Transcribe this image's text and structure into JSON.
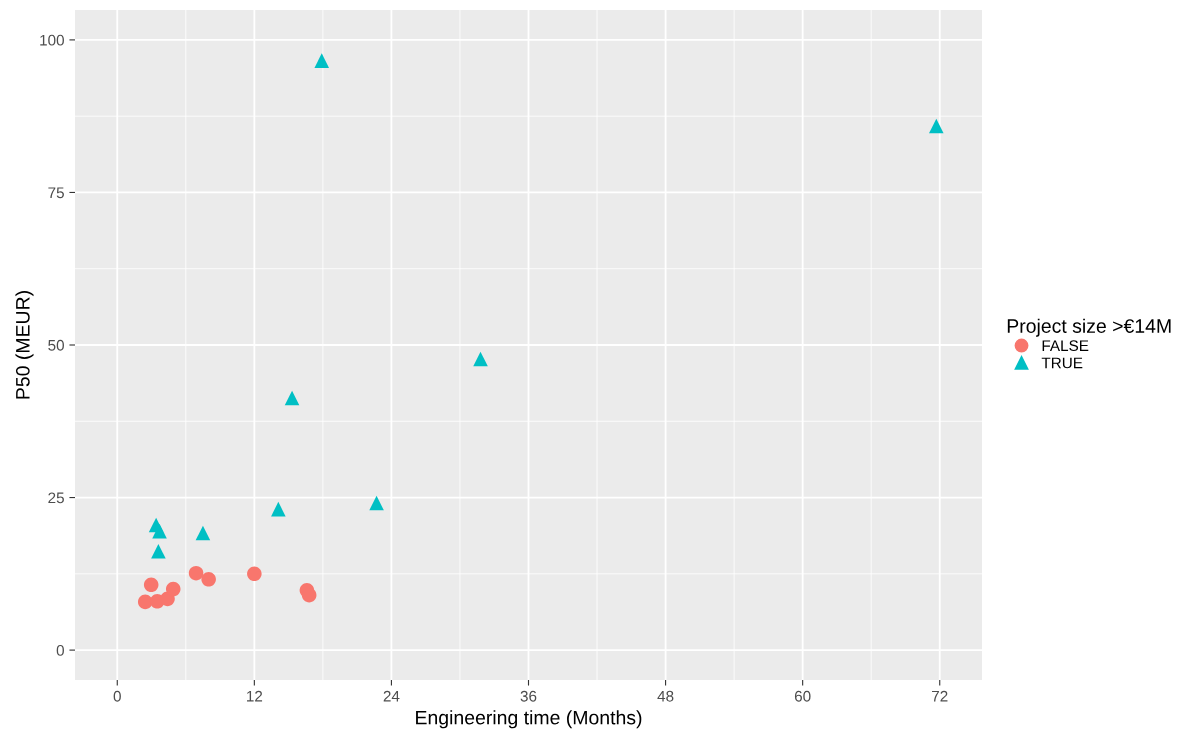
{
  "chart_data": {
    "type": "scatter",
    "xlabel": "Engineering time (Months)",
    "ylabel": "P50 (MEUR)",
    "legend_title": "Project size >€14M",
    "legend": "right",
    "grid": true,
    "xlim": [
      -3.7,
      75.7
    ],
    "ylim": [
      -4.9,
      104.9
    ],
    "xticks": [
      0,
      12,
      24,
      36,
      48,
      60,
      72
    ],
    "yticks": [
      0,
      25,
      50,
      75,
      100
    ],
    "series": [
      {
        "name": "FALSE",
        "color": "#f8766d",
        "marker": "circle",
        "x": [
          2.45,
          2.97,
          3.5,
          4.4,
          4.9,
          6.9,
          8.0,
          12.0,
          16.6,
          16.8
        ],
        "values": [
          7.9,
          10.7,
          8.0,
          8.4,
          10.0,
          12.6,
          11.6,
          12.5,
          9.8,
          9.0
        ]
      },
      {
        "name": "TRUE",
        "color": "#00bfc4",
        "marker": "triangle",
        "x": [
          3.4,
          3.7,
          3.6,
          7.5,
          14.1,
          22.7,
          17.9,
          15.3,
          31.8,
          71.7
        ],
        "values": [
          20.5,
          19.5,
          16.2,
          19.2,
          23.1,
          24.1,
          96.6,
          41.3,
          47.7,
          85.9
        ]
      }
    ]
  }
}
